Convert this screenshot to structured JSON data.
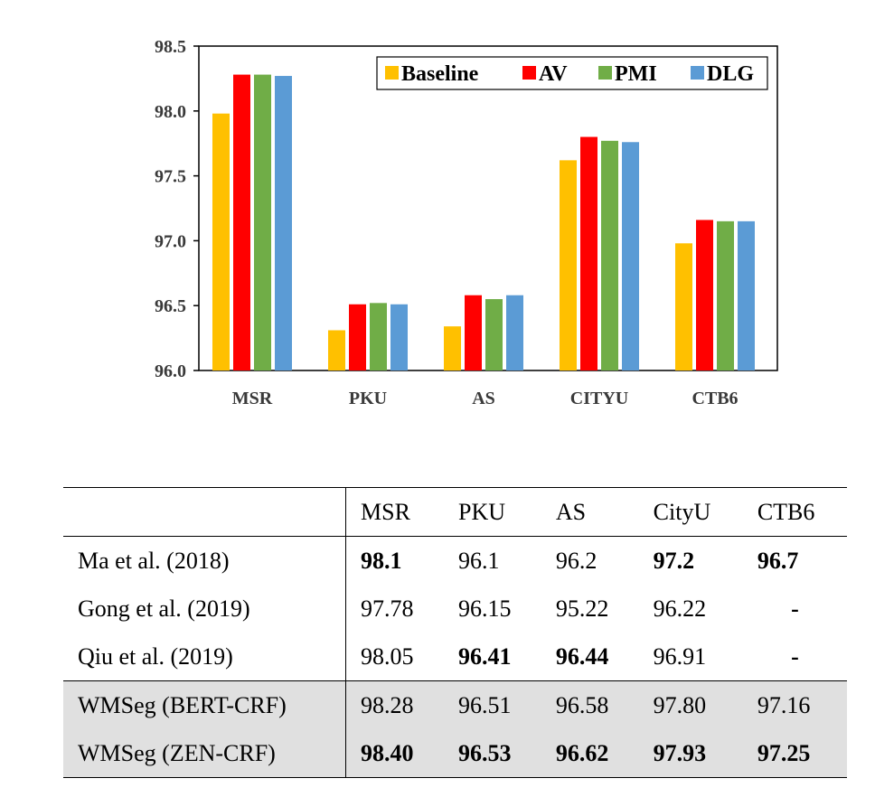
{
  "chart_data": {
    "type": "bar",
    "categories": [
      "MSR",
      "PKU",
      "AS",
      "CITYU",
      "CTB6"
    ],
    "series": [
      {
        "name": "Baseline",
        "color": "#FFC000",
        "values": [
          97.98,
          96.31,
          96.34,
          97.62,
          96.98
        ]
      },
      {
        "name": "AV",
        "color": "#FF0000",
        "values": [
          98.28,
          96.51,
          96.58,
          97.8,
          97.16
        ]
      },
      {
        "name": "PMI",
        "color": "#70AD47",
        "values": [
          98.28,
          96.52,
          96.55,
          97.77,
          97.15
        ]
      },
      {
        "name": "DLG",
        "color": "#5B9BD5",
        "values": [
          98.27,
          96.51,
          96.58,
          97.76,
          97.15
        ]
      }
    ],
    "y_ticks": [
      "96.0",
      "96.5",
      "97.0",
      "97.5",
      "98.0",
      "98.5"
    ],
    "ylim": [
      96.0,
      98.5
    ],
    "grid": false,
    "legend_position": "top-right"
  },
  "table": {
    "columns": [
      "MSR",
      "PKU",
      "AS",
      "CityU",
      "CTB6"
    ],
    "rows": [
      {
        "name": "Ma et al. (2018)",
        "cells": [
          {
            "v": "98.1",
            "bold": true
          },
          {
            "v": "96.1",
            "bold": false
          },
          {
            "v": "96.2",
            "bold": false
          },
          {
            "v": "97.2",
            "bold": true
          },
          {
            "v": "96.7",
            "bold": true
          }
        ]
      },
      {
        "name": "Gong et al. (2019)",
        "cells": [
          {
            "v": "97.78",
            "bold": false
          },
          {
            "v": "96.15",
            "bold": false
          },
          {
            "v": "95.22",
            "bold": false
          },
          {
            "v": "96.22",
            "bold": false
          },
          {
            "v": "-",
            "bold": true
          }
        ]
      },
      {
        "name": "Qiu et al. (2019)",
        "cells": [
          {
            "v": "98.05",
            "bold": false
          },
          {
            "v": "96.41",
            "bold": true
          },
          {
            "v": "96.44",
            "bold": true
          },
          {
            "v": "96.91",
            "bold": false
          },
          {
            "v": "-",
            "bold": true
          }
        ]
      },
      {
        "name": "WMSeg (BERT-CRF)",
        "shaded": true,
        "cells": [
          {
            "v": "98.28",
            "bold": false
          },
          {
            "v": "96.51",
            "bold": false
          },
          {
            "v": "96.58",
            "bold": false
          },
          {
            "v": "97.80",
            "bold": false
          },
          {
            "v": "97.16",
            "bold": false
          }
        ]
      },
      {
        "name": "WMSeg (ZEN-CRF)",
        "shaded": true,
        "cells": [
          {
            "v": "98.40",
            "bold": true
          },
          {
            "v": "96.53",
            "bold": true
          },
          {
            "v": "96.62",
            "bold": true
          },
          {
            "v": "97.93",
            "bold": true
          },
          {
            "v": "97.25",
            "bold": true
          }
        ]
      }
    ]
  }
}
